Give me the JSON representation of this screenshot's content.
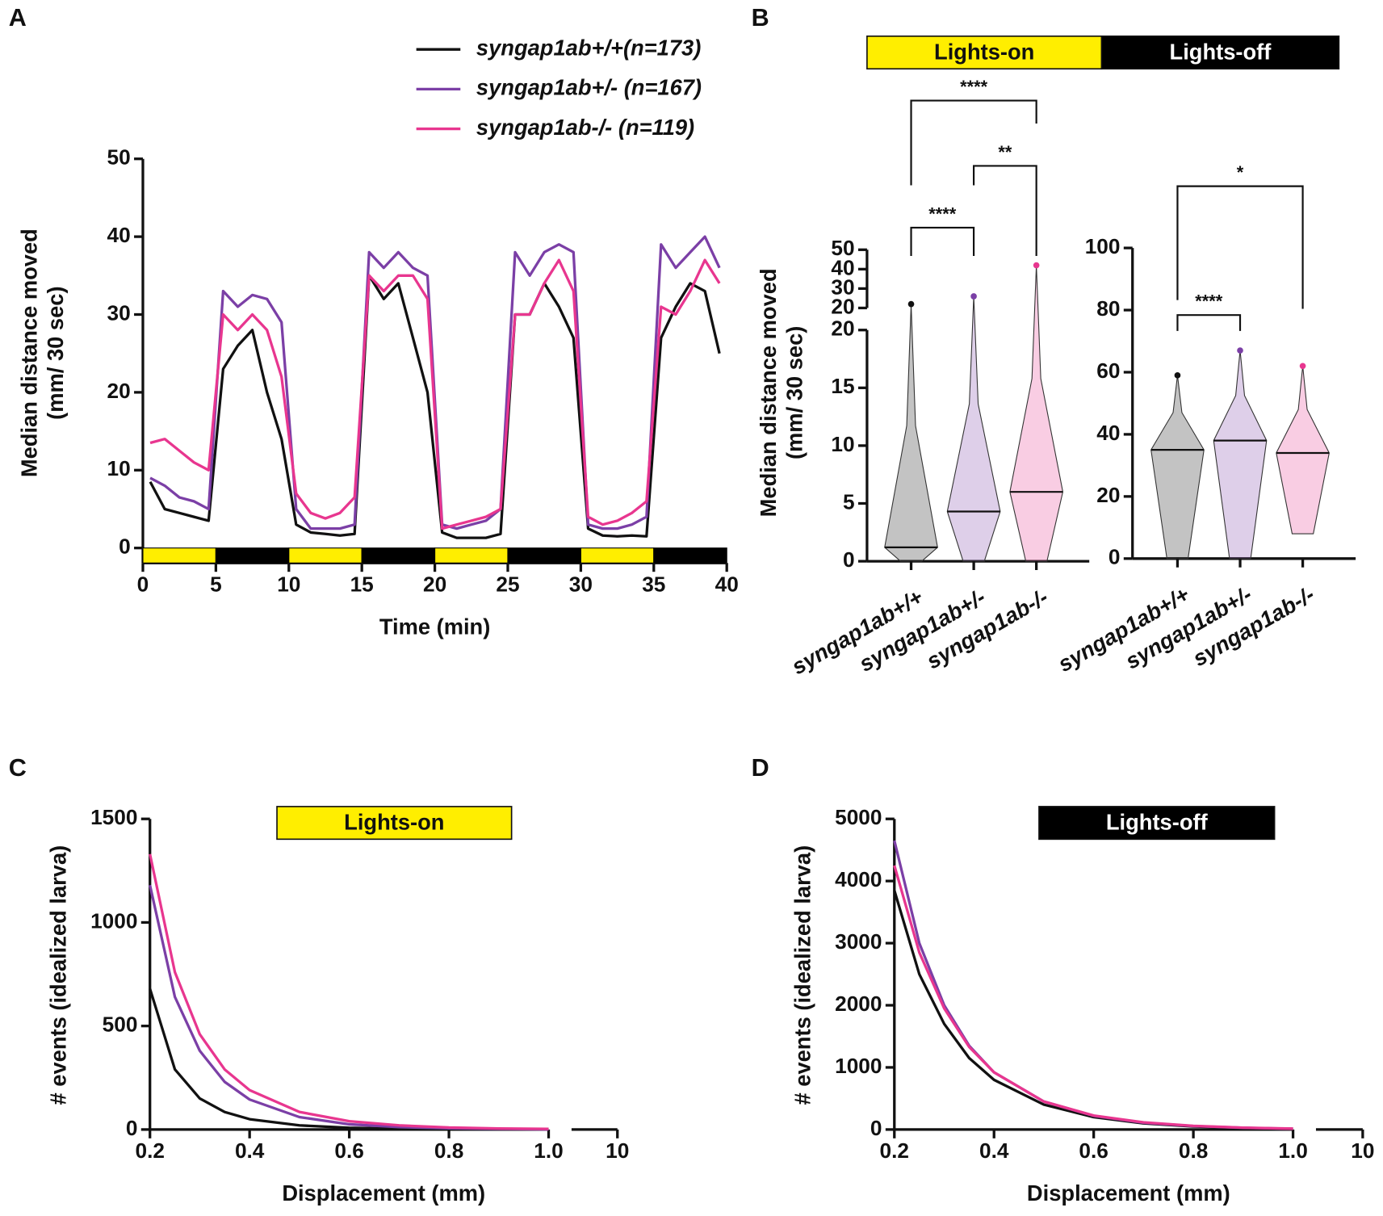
{
  "chart_data": [
    {
      "panel": "A",
      "type": "line",
      "xlabel": "Time (min)",
      "ylabel": [
        "Median distance moved",
        "(mm/ 30 sec)"
      ],
      "xlim": [
        0,
        40
      ],
      "xticks": [
        0,
        5,
        10,
        15,
        20,
        25,
        30,
        35,
        40
      ],
      "ylim": [
        0,
        50
      ],
      "yticks": [
        0,
        10,
        20,
        30,
        40,
        50
      ],
      "x": [
        0.5,
        1.5,
        2.5,
        3.5,
        4.5,
        5.5,
        6.5,
        7.5,
        8.5,
        9.5,
        10.5,
        11.5,
        12.5,
        13.5,
        14.5,
        15.5,
        16.5,
        17.5,
        18.5,
        19.5,
        20.5,
        21.5,
        22.5,
        23.5,
        24.5,
        25.5,
        26.5,
        27.5,
        28.5,
        29.5,
        30.5,
        31.5,
        32.5,
        33.5,
        34.5,
        35.5,
        36.5,
        37.5,
        38.5,
        39.5
      ],
      "series": [
        {
          "name": "syngap1ab+/+(n=173)",
          "color": "#111111",
          "values": [
            8.5,
            5,
            4.5,
            4,
            3.5,
            23,
            26,
            28,
            20,
            14,
            3,
            2,
            1.8,
            1.6,
            1.8,
            35,
            32,
            34,
            27,
            20,
            2,
            1.3,
            1.3,
            1.3,
            1.8,
            30,
            30,
            34,
            31,
            27,
            2.5,
            1.6,
            1.5,
            1.6,
            1.5,
            27,
            31,
            34,
            33,
            25
          ]
        },
        {
          "name": "syngap1ab+/- (n=167)",
          "color": "#7b3fa6",
          "values": [
            9,
            8,
            6.5,
            6,
            5,
            33,
            31,
            32.5,
            32,
            29,
            5,
            2.5,
            2.5,
            2.5,
            3,
            38,
            36,
            38,
            36,
            35,
            3,
            2.5,
            3,
            3.5,
            5,
            38,
            35,
            38,
            39,
            38,
            3,
            2.5,
            2.5,
            3,
            4,
            39,
            36,
            38,
            40,
            36
          ]
        },
        {
          "name": "syngap1ab-/-  (n=119)",
          "color": "#e8368f",
          "values": [
            13.5,
            14,
            12.5,
            11,
            10,
            30,
            28,
            30,
            28,
            22,
            7,
            4.5,
            3.8,
            4.5,
            6.5,
            35,
            33,
            35,
            35,
            32,
            2.5,
            3,
            3.5,
            4,
            5,
            30,
            30,
            34,
            37,
            33,
            4,
            3,
            3.5,
            4.5,
            6,
            31,
            30,
            33,
            37,
            34
          ]
        }
      ]
    },
    {
      "panel": "B",
      "type": "violin",
      "title": "Lights-on",
      "title_color": "#ffee00",
      "ylabel": [
        "Median distance moved",
        "(mm/ 30 sec)"
      ],
      "categories": [
        "syngap1ab+/+",
        "syngap1ab+/-",
        "syngap1ab-/-"
      ],
      "colors": [
        "#111111",
        "#7b3fa6",
        "#e8368f"
      ],
      "values": [
        1.2,
        4.3,
        6
      ],
      "mins": [
        0,
        0,
        0
      ],
      "maxes": [
        22,
        26,
        42
      ],
      "ylim": [
        0,
        20
      ],
      "yticks": [
        0,
        5,
        10,
        15,
        20
      ],
      "y_upper_lim": [
        20,
        50
      ],
      "y_upper_ticks": [
        20,
        30,
        40,
        50
      ],
      "annotations": [
        "****",
        "**",
        "****"
      ]
    },
    {
      "type": "violin",
      "title": "Lights-off",
      "title_color": "#000000",
      "categories": [
        "syngap1ab+/+",
        "syngap1ab+/-",
        "syngap1ab-/-"
      ],
      "colors": [
        "#111111",
        "#7b3fa6",
        "#e8368f"
      ],
      "values": [
        35,
        38,
        34
      ],
      "mins": [
        0,
        0,
        8
      ],
      "maxes": [
        59,
        67,
        62
      ],
      "ylim": [
        0,
        100
      ],
      "yticks": [
        0,
        20,
        40,
        60,
        80,
        100
      ],
      "annotations": [
        "*",
        "****"
      ]
    },
    {
      "panel": "C",
      "type": "line",
      "title": "Lights-on",
      "title_color": "#ffee00",
      "xlabel": "Displacement (mm)",
      "ylabel": [
        "# events (idealized larva)"
      ],
      "xlim": [
        0.2,
        1.0
      ],
      "xticks": [
        0.2,
        0.4,
        0.6,
        0.8,
        {
          "value": 1,
          "label": "1.0"
        },
        10
      ],
      "ylim": [
        0,
        1500
      ],
      "yticks": [
        0,
        500,
        1000,
        1500
      ],
      "x": [
        0.2,
        0.25,
        0.3,
        0.35,
        0.4,
        0.5,
        0.6,
        0.7,
        0.8,
        0.9,
        1.0
      ],
      "series": [
        {
          "color": "#111111",
          "values": [
            680,
            290,
            150,
            85,
            50,
            20,
            8,
            4,
            2,
            1,
            0
          ]
        },
        {
          "color": "#7b3fa6",
          "values": [
            1180,
            640,
            380,
            230,
            145,
            60,
            25,
            12,
            6,
            3,
            1
          ]
        },
        {
          "color": "#e8368f",
          "values": [
            1330,
            760,
            460,
            290,
            190,
            85,
            40,
            20,
            10,
            5,
            3
          ]
        }
      ]
    },
    {
      "panel": "D",
      "type": "line",
      "title": "Lights-off",
      "title_color": "#000000",
      "xlabel": "Displacement (mm)",
      "ylabel": [
        "# events (idealized larva)"
      ],
      "xlim": [
        0.2,
        1.0
      ],
      "xticks": [
        0.2,
        0.4,
        0.6,
        0.8,
        {
          "value": 1,
          "label": "1.0"
        },
        10
      ],
      "ylim": [
        0,
        5000
      ],
      "yticks": [
        0,
        1000,
        2000,
        3000,
        4000,
        5000
      ],
      "x": [
        0.2,
        0.25,
        0.3,
        0.35,
        0.4,
        0.5,
        0.6,
        0.7,
        0.8,
        0.9,
        1.0
      ],
      "series": [
        {
          "color": "#111111",
          "values": [
            3850,
            2500,
            1700,
            1150,
            800,
            400,
            200,
            100,
            50,
            25,
            10
          ]
        },
        {
          "color": "#7b3fa6",
          "values": [
            4650,
            3000,
            2000,
            1350,
            920,
            450,
            220,
            110,
            55,
            28,
            12
          ]
        },
        {
          "color": "#e8368f",
          "values": [
            4250,
            2850,
            1950,
            1330,
            920,
            450,
            225,
            115,
            58,
            30,
            14
          ]
        }
      ]
    }
  ]
}
